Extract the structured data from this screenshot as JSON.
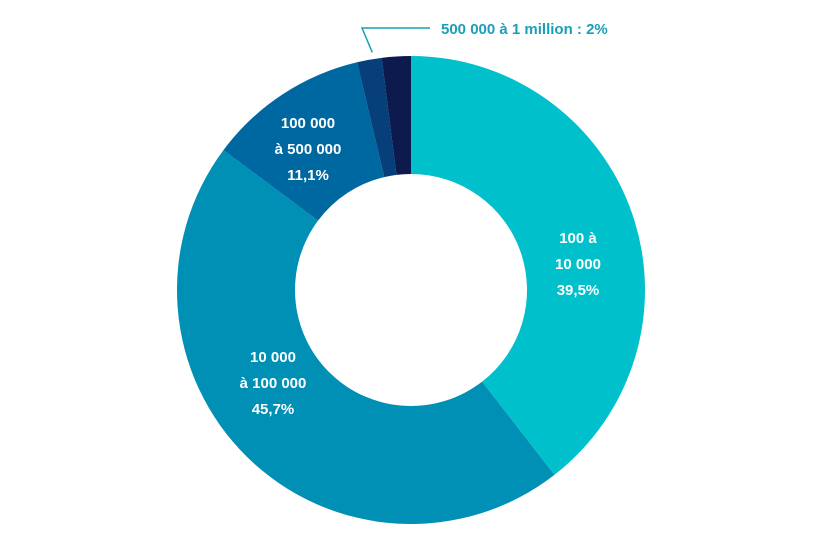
{
  "chart_data": {
    "type": "pie",
    "donut": true,
    "slices": [
      {
        "label_lines": [
          "100 à",
          "10 000",
          "39,5%"
        ],
        "value": 39.5,
        "color": "#00c0cc"
      },
      {
        "label_lines": [
          "10 000",
          "à 100 000",
          "45,7%"
        ],
        "value": 45.7,
        "color": "#008fb5"
      },
      {
        "label_lines": [
          "100 000",
          "à 500 000",
          "11,1%"
        ],
        "value": 11.1,
        "color": "#0068a1"
      },
      {
        "label_lines": [],
        "value": 1.7,
        "color": "#063f7a"
      },
      {
        "label_lines": [
          "500 000 à 1 million : 2%"
        ],
        "value": 2.0,
        "color": "#0d1a4e",
        "callout": true
      }
    ],
    "callout_color": "#1a9fb8"
  }
}
